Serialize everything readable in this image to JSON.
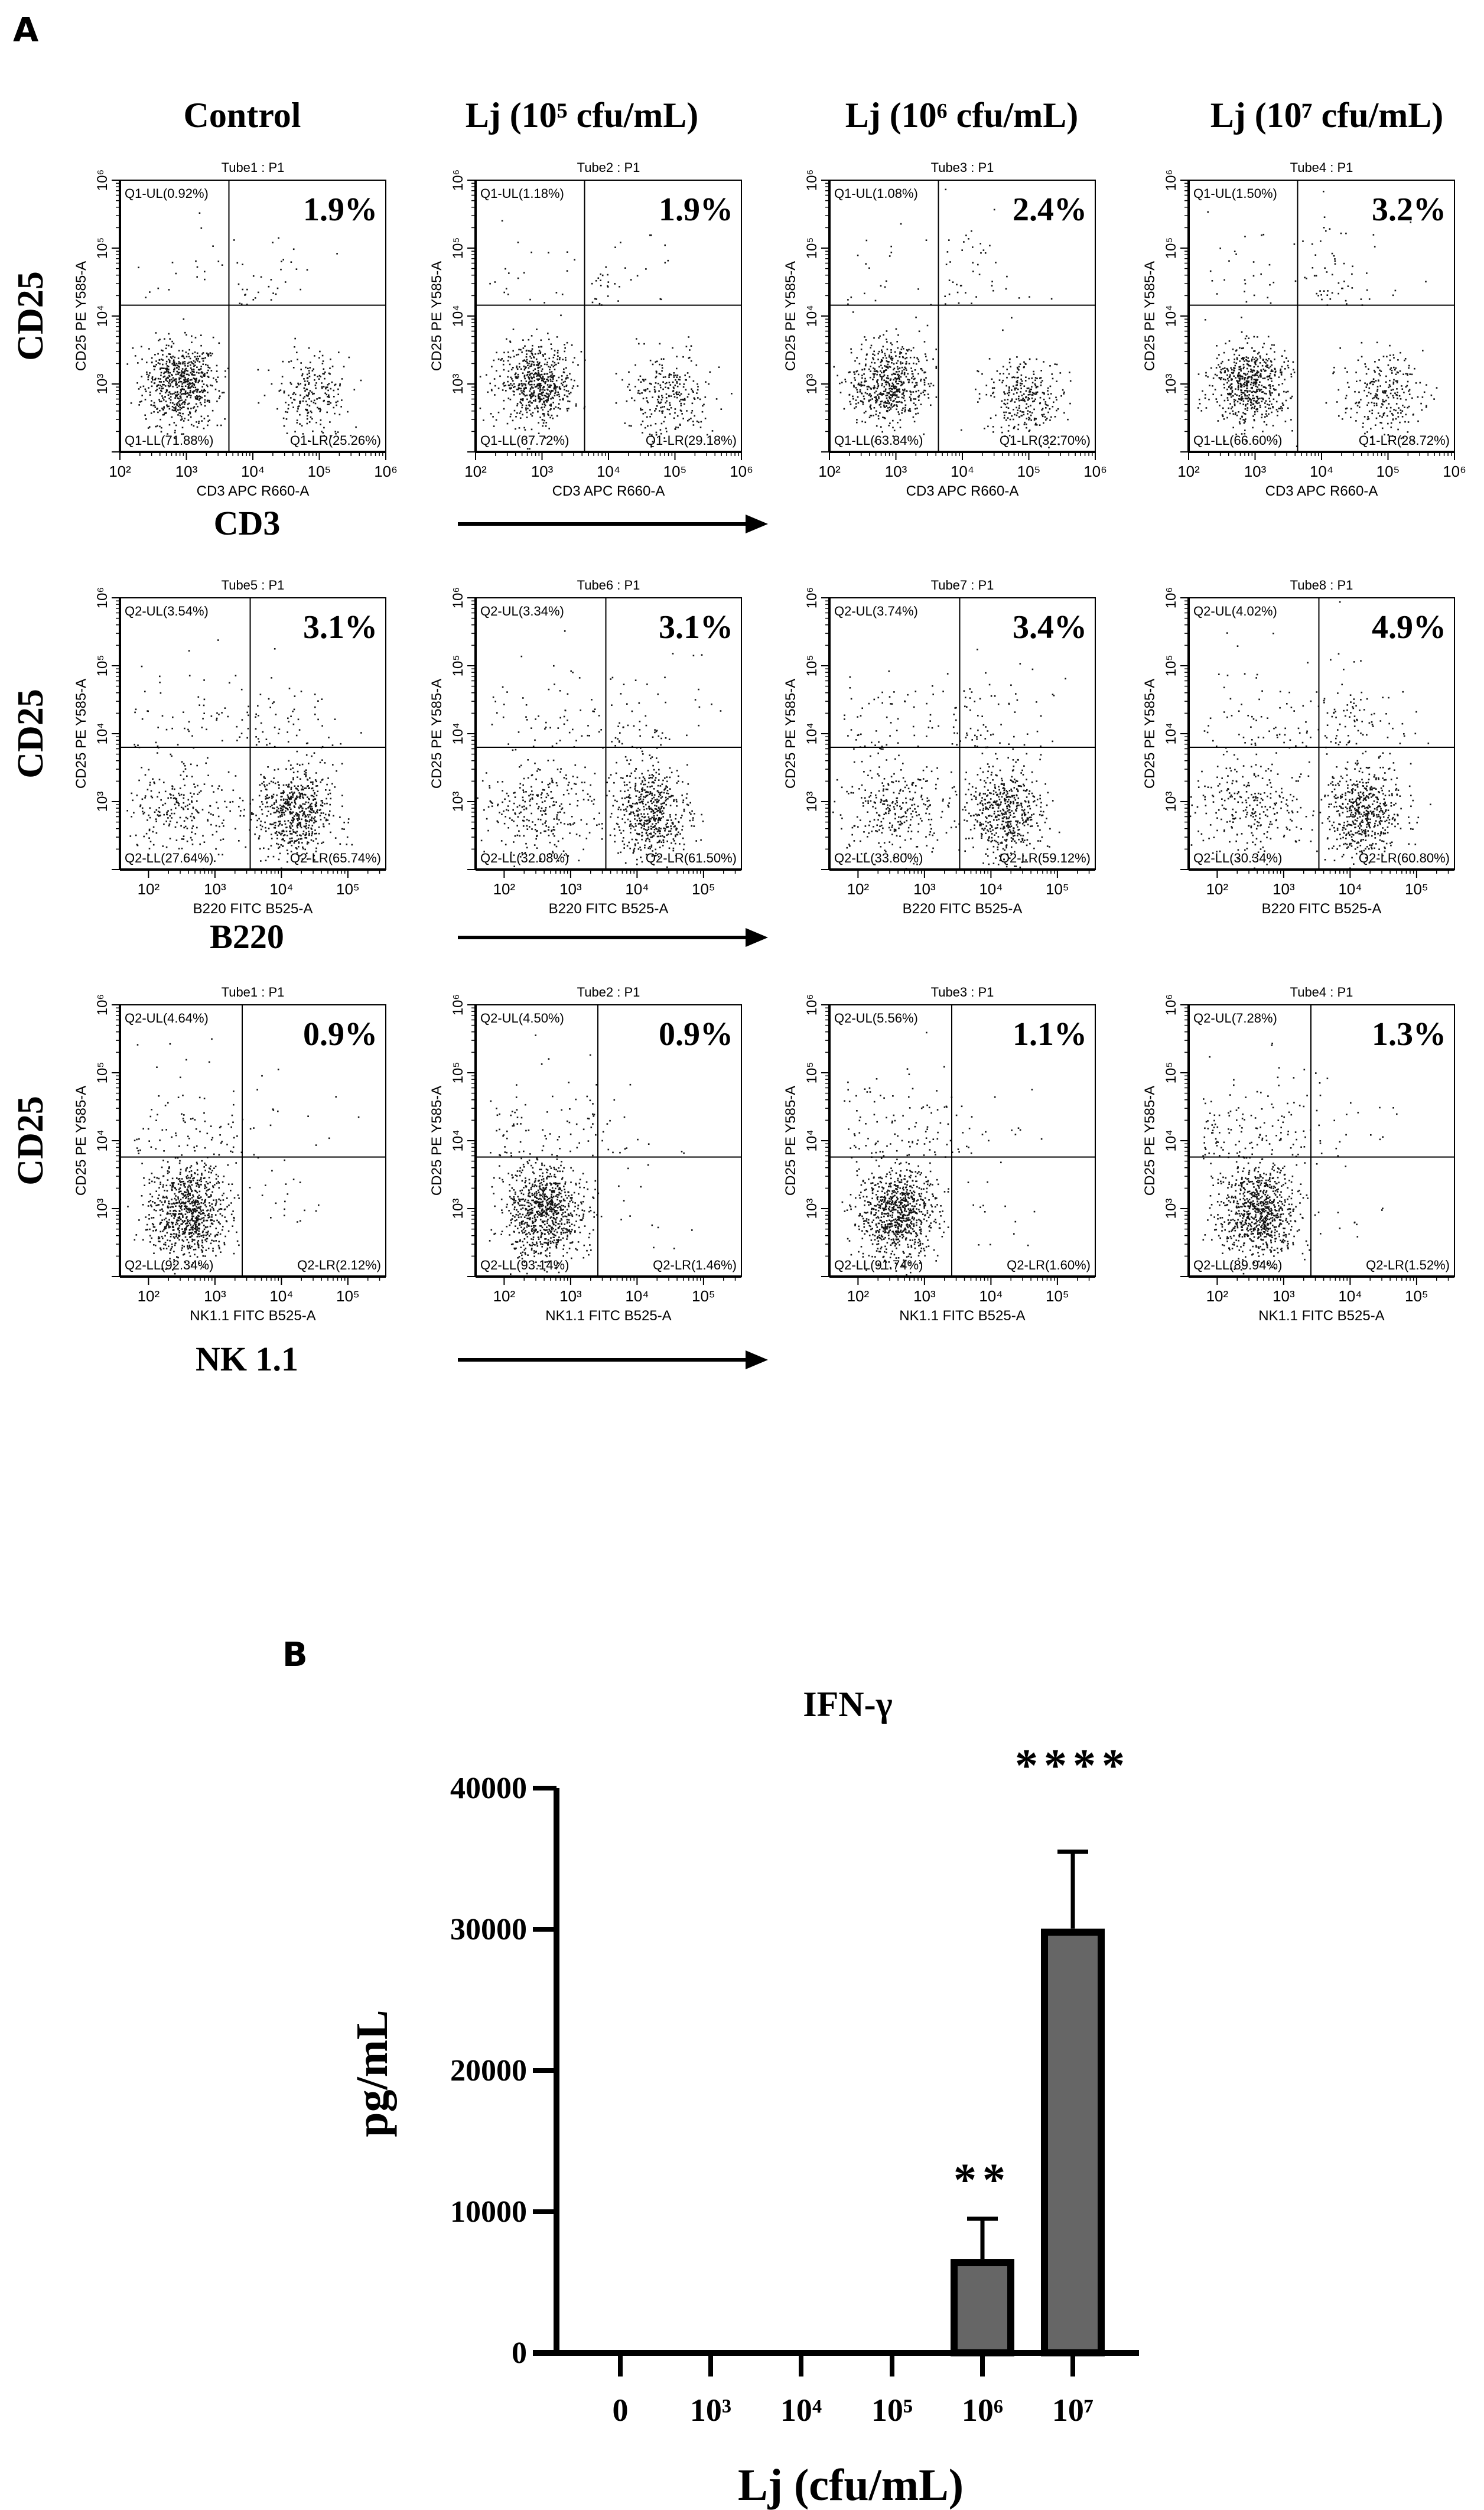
{
  "panel_a": {
    "label": "A",
    "columns": [
      "Control",
      "Lj (10⁵ cfu/mL)",
      "Lj (10⁶ cfu/mL)",
      "Lj (10⁷ cfu/mL)"
    ],
    "rows": [
      {
        "row_ylabel": "CD25",
        "marker_label": "CD3",
        "x_axis_label": "CD3 APC R660-A",
        "y_axis_label": "CD25 PE Y585-A",
        "x_ticks": [
          "10²",
          "10³",
          "10⁴",
          "10⁵",
          "10⁶"
        ],
        "y_ticks": [
          "10³",
          "10⁴",
          "10⁵",
          "10⁶"
        ],
        "plots": [
          {
            "tube": "Tube1 : P1",
            "ul": "Q1-UL(0.92%)",
            "ll": "Q1-LL(71.88%)",
            "lr": "Q1-LR(25.26%)",
            "ur_pct": "1.9%"
          },
          {
            "tube": "Tube2 : P1",
            "ul": "Q1-UL(1.18%)",
            "ll": "Q1-LL(67.72%)",
            "lr": "Q1-LR(29.18%)",
            "ur_pct": "1.9%"
          },
          {
            "tube": "Tube3 : P1",
            "ul": "Q1-UL(1.08%)",
            "ll": "Q1-LL(63.84%)",
            "lr": "Q1-LR(32.70%)",
            "ur_pct": "2.4%"
          },
          {
            "tube": "Tube4 : P1",
            "ul": "Q1-UL(1.50%)",
            "ll": "Q1-LL(66.60%)",
            "lr": "Q1-LR(28.72%)",
            "ur_pct": "3.2%"
          }
        ]
      },
      {
        "row_ylabel": "CD25",
        "marker_label": "B220",
        "x_axis_label": "B220 FITC B525-A",
        "y_axis_label": "CD25 PE Y585-A",
        "x_ticks": [
          "10²",
          "10³",
          "10⁴",
          "10⁵"
        ],
        "y_ticks": [
          "10³",
          "10⁴",
          "10⁵",
          "10⁶"
        ],
        "plots": [
          {
            "tube": "Tube5 : P1",
            "ul": "Q2-UL(3.54%)",
            "ll": "Q2-LL(27.64%)",
            "lr": "Q2-LR(65.74%)",
            "ur_pct": "3.1%"
          },
          {
            "tube": "Tube6 : P1",
            "ul": "Q2-UL(3.34%)",
            "ll": "Q2-LL(32.08%)",
            "lr": "Q2-LR(61.50%)",
            "ur_pct": "3.1%"
          },
          {
            "tube": "Tube7 : P1",
            "ul": "Q2-UL(3.74%)",
            "ll": "Q2-LL(33.80%)",
            "lr": "Q2-LR(59.12%)",
            "ur_pct": "3.4%"
          },
          {
            "tube": "Tube8 : P1",
            "ul": "Q2-UL(4.02%)",
            "ll": "Q2-LL(30.34%)",
            "lr": "Q2-LR(60.80%)",
            "ur_pct": "4.9%"
          }
        ]
      },
      {
        "row_ylabel": "CD25",
        "marker_label": "NK 1.1",
        "x_axis_label": "NK1.1 FITC B525-A",
        "y_axis_label": "CD25 PE Y585-A",
        "x_ticks": [
          "10²",
          "10³",
          "10⁴",
          "10⁵"
        ],
        "y_ticks": [
          "10³",
          "10⁴",
          "10⁵",
          "10⁶"
        ],
        "plots": [
          {
            "tube": "Tube1 : P1",
            "ul": "Q2-UL(4.64%)",
            "ll": "Q2-LL(92.34%)",
            "lr": "Q2-LR(2.12%)",
            "ur_pct": "0.9%"
          },
          {
            "tube": "Tube2 : P1",
            "ul": "Q2-UL(4.50%)",
            "ll": "Q2-LL(93.14%)",
            "lr": "Q2-LR(1.46%)",
            "ur_pct": "0.9%"
          },
          {
            "tube": "Tube3 : P1",
            "ul": "Q2-UL(5.56%)",
            "ll": "Q2-LL(91.74%)",
            "lr": "Q2-LR(1.60%)",
            "ur_pct": "1.1%"
          },
          {
            "tube": "Tube4 : P1",
            "ul": "Q2-UL(7.28%)",
            "ll": "Q2-LL(89.94%)",
            "lr": "Q2-LR(1.52%)",
            "ur_pct": "1.3%"
          }
        ]
      }
    ]
  },
  "panel_b": {
    "label": "B"
  },
  "chart_data": [
    {
      "type": "scatter",
      "description_kind": "flow-cytometry-quadrant-grid",
      "x_range_log10": [
        [
          2,
          6
        ],
        [
          1.57,
          5.57
        ],
        [
          1.57,
          5.57
        ]
      ],
      "y_range_log10": [
        2,
        6
      ],
      "gates_log10": [
        {
          "x": 3.64,
          "y": 4.16
        },
        {
          "x": 3.53,
          "y": 3.8
        },
        {
          "x": 3.41,
          "y": 3.76
        }
      ],
      "quadrant_percent": [
        [
          [
            0.92,
            1.9,
            71.88,
            25.26
          ],
          [
            1.18,
            1.9,
            67.72,
            29.18
          ],
          [
            1.08,
            2.4,
            63.84,
            32.7
          ],
          [
            1.5,
            3.2,
            66.6,
            28.72
          ]
        ],
        [
          [
            3.54,
            3.1,
            27.64,
            65.74
          ],
          [
            3.34,
            3.1,
            32.08,
            61.5
          ],
          [
            3.74,
            3.4,
            33.8,
            59.12
          ],
          [
            4.02,
            4.9,
            30.34,
            60.8
          ]
        ],
        [
          [
            4.64,
            0.9,
            92.34,
            2.12
          ],
          [
            4.5,
            0.9,
            93.14,
            1.46
          ],
          [
            5.56,
            1.1,
            91.74,
            1.6
          ],
          [
            7.28,
            1.3,
            89.94,
            1.52
          ]
        ]
      ],
      "quadrant_order": "UL, UR, LL, LR"
    },
    {
      "type": "bar",
      "title": "IFN-γ",
      "xlabel": "Lj (cfu/mL)",
      "ylabel": "pg/mL",
      "categories": [
        "0",
        "10³",
        "10⁴",
        "10⁵",
        "10⁶",
        "10⁷"
      ],
      "values": [
        0,
        0,
        0,
        0,
        6400,
        29800
      ],
      "error_upper": [
        0,
        0,
        0,
        0,
        9500,
        35500
      ],
      "significance": [
        "",
        "",
        "",
        "",
        "**",
        "****"
      ],
      "ylim": [
        0,
        40000
      ],
      "yticks": [
        "0",
        "10000",
        "20000",
        "30000",
        "40000"
      ],
      "ytick_values": [
        0,
        10000,
        20000,
        30000,
        40000
      ],
      "bar_color": "#666666"
    }
  ]
}
